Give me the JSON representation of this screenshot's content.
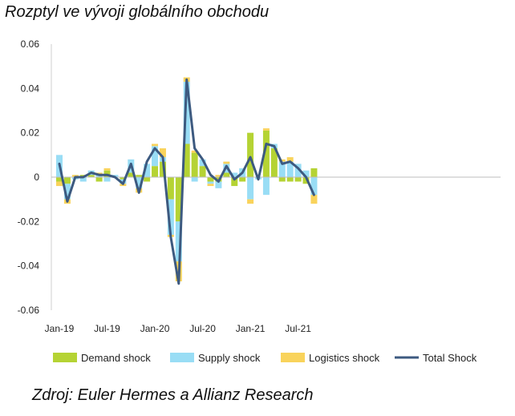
{
  "title": "Rozptyl ve vývoji globálního obchodu",
  "source": "Zdroj: Euler Hermes a Allianz Research",
  "chart_data": {
    "type": "bar",
    "stacked": true,
    "ylim": [
      -0.06,
      0.06
    ],
    "yticks": [
      "0.06",
      "0.04",
      "0.02",
      "0",
      "-0.02",
      "-0.04",
      "-0.06"
    ],
    "ytick_values": [
      0.06,
      0.04,
      0.02,
      0,
      -0.02,
      -0.04,
      -0.06
    ],
    "categories": [
      "2019-01",
      "2019-02",
      "2019-03",
      "2019-04",
      "2019-05",
      "2019-06",
      "2019-07",
      "2019-08",
      "2019-09",
      "2019-10",
      "2019-11",
      "2019-12",
      "2020-01",
      "2020-02",
      "2020-03",
      "2020-04",
      "2020-05",
      "2020-06",
      "2020-07",
      "2020-08",
      "2020-09",
      "2020-10",
      "2020-11",
      "2020-12",
      "2021-01",
      "2021-02",
      "2021-03",
      "2021-04",
      "2021-05",
      "2021-06",
      "2021-07",
      "2021-08",
      "2021-09"
    ],
    "xtick_labels": [
      {
        "label": "Jan-19",
        "index": 0
      },
      {
        "label": "Jul-19",
        "index": 6
      },
      {
        "label": "Jan-20",
        "index": 12
      },
      {
        "label": "Jul-20",
        "index": 18
      },
      {
        "label": "Jan-21",
        "index": 24
      },
      {
        "label": "Jul-21",
        "index": 30
      }
    ],
    "series": [
      {
        "name": "Demand shock",
        "color": "#b5d334",
        "kind": "bar",
        "values": [
          -0.002,
          -0.003,
          0.0,
          0.001,
          0.001,
          -0.002,
          0.003,
          0.0,
          -0.001,
          0.002,
          0.001,
          -0.002,
          0.005,
          0.007,
          -0.01,
          -0.02,
          0.015,
          0.011,
          0.005,
          -0.002,
          -0.002,
          0.002,
          -0.004,
          -0.002,
          0.02,
          0.0,
          0.021,
          0.013,
          -0.002,
          -0.002,
          -0.002,
          -0.003,
          0.004
        ]
      },
      {
        "name": "Supply shock",
        "color": "#99ddf5",
        "kind": "bar",
        "values": [
          0.01,
          -0.007,
          -0.001,
          -0.002,
          0.002,
          0.001,
          -0.002,
          0.001,
          -0.002,
          0.006,
          -0.005,
          0.006,
          0.009,
          0.002,
          -0.016,
          -0.018,
          0.028,
          -0.002,
          0.003,
          -0.001,
          -0.003,
          0.004,
          0.002,
          0.004,
          -0.01,
          -0.001,
          -0.008,
          0.002,
          0.007,
          0.007,
          0.006,
          0.003,
          -0.008
        ]
      },
      {
        "name": "Logistics shock",
        "color": "#f9d35b",
        "kind": "bar",
        "values": [
          -0.002,
          -0.002,
          0.001,
          0.0,
          0.0,
          0.001,
          0.001,
          0.0,
          -0.001,
          0.0,
          -0.002,
          0.0,
          0.001,
          0.004,
          -0.001,
          -0.009,
          0.002,
          0.001,
          0.0,
          -0.001,
          0.001,
          0.001,
          0.0,
          0.0,
          -0.002,
          0.0,
          0.001,
          0.0,
          0.001,
          0.002,
          0.0,
          0.0,
          -0.004
        ]
      },
      {
        "name": "Total Shock",
        "color": "#3d5a80",
        "kind": "line",
        "values": [
          0.006,
          -0.011,
          0.0,
          0.0,
          0.002,
          0.001,
          0.001,
          0.0,
          -0.003,
          0.006,
          -0.007,
          0.007,
          0.013,
          0.009,
          -0.027,
          -0.048,
          0.044,
          0.013,
          0.008,
          0.001,
          -0.002,
          0.005,
          -0.001,
          0.002,
          0.009,
          -0.001,
          0.015,
          0.014,
          0.006,
          0.007,
          0.004,
          0.0,
          -0.008
        ]
      }
    ],
    "grid": false,
    "legend_position": "bottom"
  }
}
